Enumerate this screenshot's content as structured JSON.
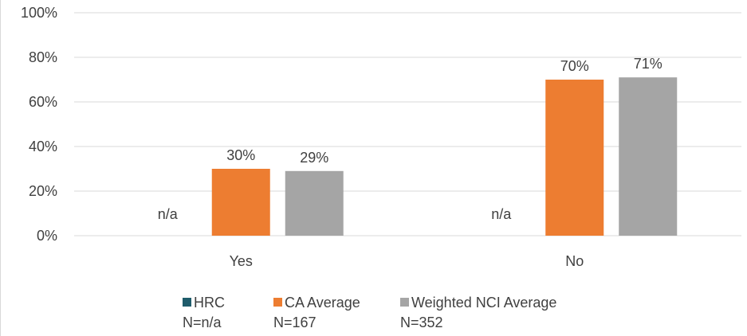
{
  "chart_data": {
    "type": "bar",
    "categories": [
      "Yes",
      "No"
    ],
    "ylim": [
      0,
      100
    ],
    "yticks": [
      0,
      20,
      40,
      60,
      80,
      100
    ],
    "ytick_labels": [
      "0%",
      "20%",
      "40%",
      "60%",
      "80%",
      "100%"
    ],
    "grid": true,
    "legend_position": "bottom",
    "series": [
      {
        "name": "HRC",
        "n_label": "N=n/a",
        "color": "#1f5c6b",
        "values": [
          null,
          null
        ],
        "data_labels": [
          "n/a",
          "n/a"
        ]
      },
      {
        "name": "CA Average",
        "n_label": "N=167",
        "color": "#ed7d31",
        "values": [
          30,
          70
        ],
        "data_labels": [
          "30%",
          "70%"
        ]
      },
      {
        "name": "Weighted NCI Average",
        "n_label": "N=352",
        "color": "#a5a5a5",
        "values": [
          29,
          71
        ],
        "data_labels": [
          "29%",
          "71%"
        ]
      }
    ]
  }
}
